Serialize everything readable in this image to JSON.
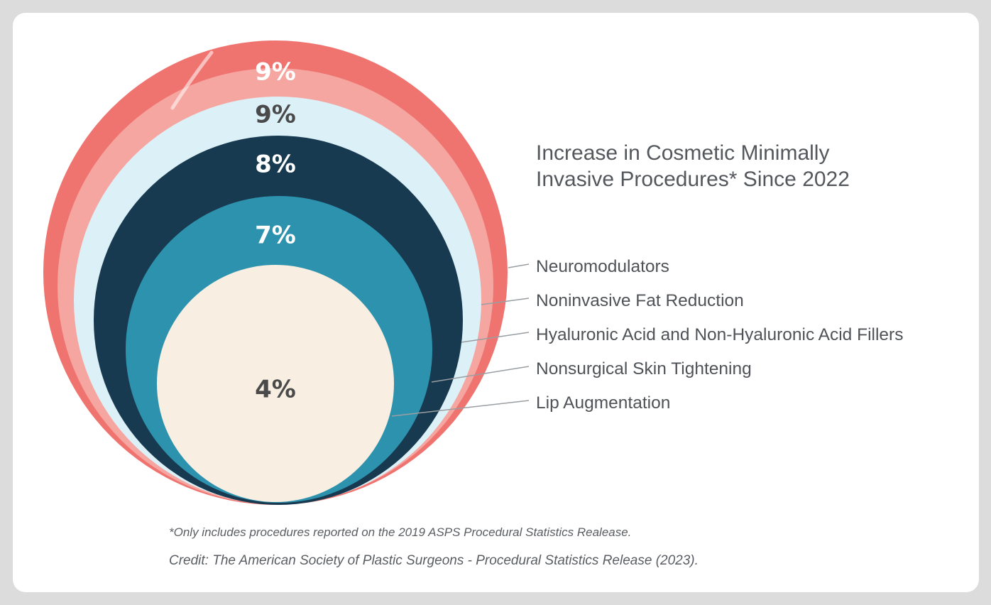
{
  "chart_data": {
    "type": "nested-circle",
    "title": "Increase in Cosmetic Minimally Invasive Procedures* Since 2022",
    "categories": [
      "Neuromodulators",
      "Noninvasive Fat Reduction",
      "Hyaluronic Acid and Non-Hyaluronic Acid Fillers",
      "Nonsurgical Skin Tightening",
      "Lip Augmentation"
    ],
    "values": [
      9,
      9,
      8,
      7,
      4
    ],
    "value_labels": [
      "9%",
      "9%",
      "8%",
      "7%",
      "4%"
    ],
    "colors": [
      "#ef7470",
      "#dcf0f7",
      "#173a50",
      "#2d92ad",
      "#f8efe2"
    ],
    "secondary_colors": [
      "#f6a6a0"
    ],
    "label_colors": [
      "#ffffff",
      "#4a4a4a",
      "#ffffff",
      "#ffffff",
      "#4a4a4a"
    ],
    "unit": "%"
  },
  "footnotes": {
    "note": "*Only includes procedures reported on the 2019 ASPS Procedural Statistics Realease.",
    "credit": "Credit: The American Society of Plastic Surgeons - Procedural Statistics Release (2023)."
  }
}
